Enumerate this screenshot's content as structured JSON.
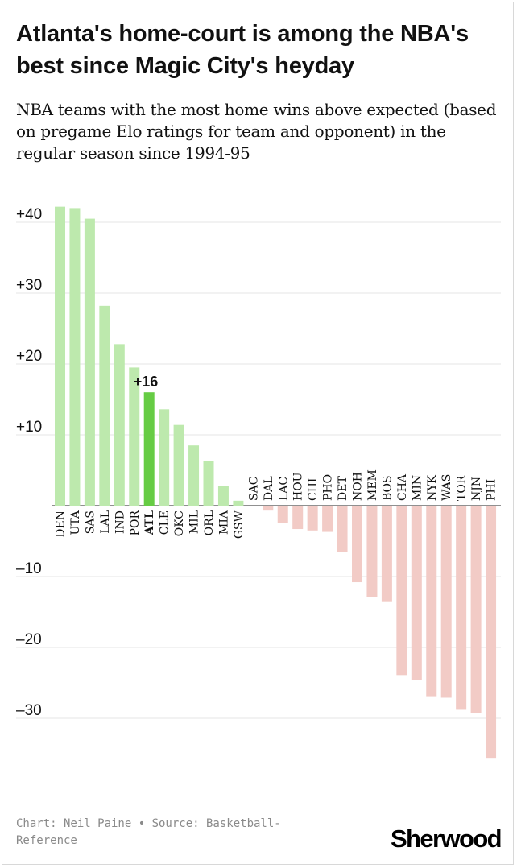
{
  "header": {
    "title": "Atlanta's home-court is among the NBA's best since Magic City's heyday",
    "subtitle": "NBA teams with the most home wins above expected (based on pregame Elo ratings for team and opponent) in the regular season since 1994-95"
  },
  "footer": {
    "credit": "Chart: Neil Paine • Source: Basketball-Reference",
    "logo": "Sherwood"
  },
  "colors": {
    "positive": "#bde9ad",
    "negative": "#f2cbc6",
    "highlight": "#66cc44",
    "grid": "#e4e4e4"
  },
  "chart_data": {
    "type": "bar",
    "categories": [
      "DEN",
      "UTA",
      "SAS",
      "LAL",
      "IND",
      "POR",
      "ATL",
      "CLE",
      "OKC",
      "MIL",
      "ORL",
      "MIA",
      "GSW",
      "SAC",
      "DAL",
      "LAC",
      "HOU",
      "CHI",
      "PHO",
      "DET",
      "NOH",
      "MEM",
      "BOS",
      "CHA",
      "MIN",
      "NYK",
      "WAS",
      "TOR",
      "NJN",
      "PHI"
    ],
    "values": [
      42.2,
      42.0,
      40.5,
      28.2,
      22.8,
      19.5,
      16.0,
      13.6,
      11.4,
      8.5,
      6.3,
      2.8,
      0.7,
      -0.1,
      -0.7,
      -2.5,
      -3.3,
      -3.5,
      -3.7,
      -6.5,
      -10.8,
      -12.9,
      -13.6,
      -23.9,
      -24.6,
      -27.0,
      -27.1,
      -28.8,
      -29.3,
      -35.7
    ],
    "highlight": "ATL",
    "annotation": {
      "category": "ATL",
      "text": "+16"
    },
    "yticks": [
      40,
      30,
      20,
      10,
      -10,
      -20,
      -30
    ],
    "ytick_labels": [
      "+40",
      "+30",
      "+20",
      "+10",
      "–10",
      "–20",
      "–30"
    ],
    "ylim": [
      -38,
      44
    ],
    "grid": true,
    "xlabel": "",
    "ylabel": ""
  }
}
